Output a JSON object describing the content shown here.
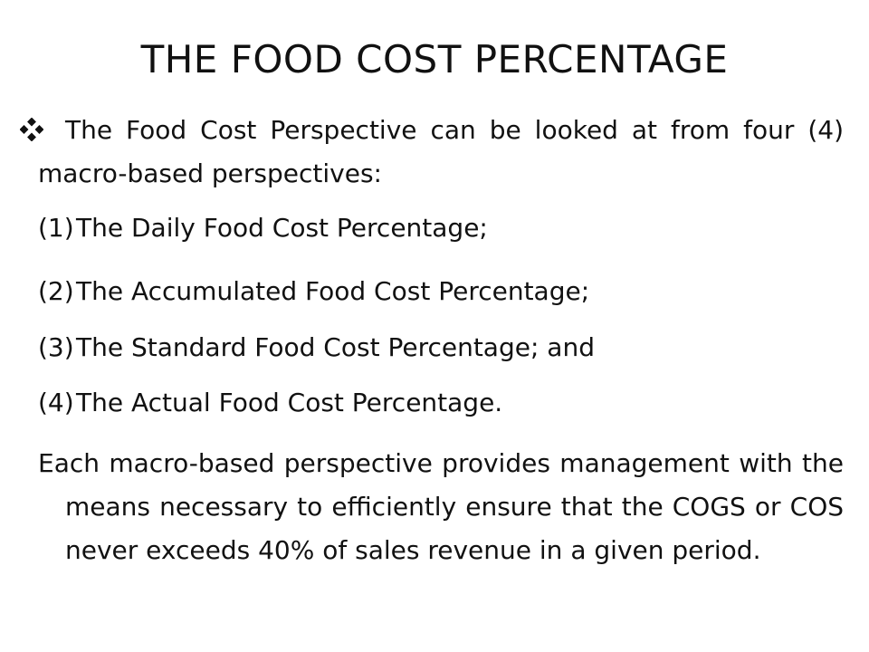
{
  "slide": {
    "title": "THE FOOD COST PERCENTAGE",
    "bullet_icon": "diamond-bullet-icon",
    "intro": "The Food Cost Perspective can be looked at from four (4) macro-based perspectives:",
    "list": [
      {
        "number": "(1)",
        "text": "The Daily Food Cost Percentage;"
      },
      {
        "number": "(2)",
        "text": "The Accumulated Food Cost Percentage;"
      },
      {
        "number": "(3)",
        "text": "The Standard Food Cost Percentage; and"
      },
      {
        "number": "(4)",
        "text": "The Actual Food Cost Percentage."
      }
    ],
    "closing": "Each macro-based perspective provides management with the means necessary to efficiently ensure that the COGS or COS never exceeds 40% of sales revenue in a given period."
  }
}
